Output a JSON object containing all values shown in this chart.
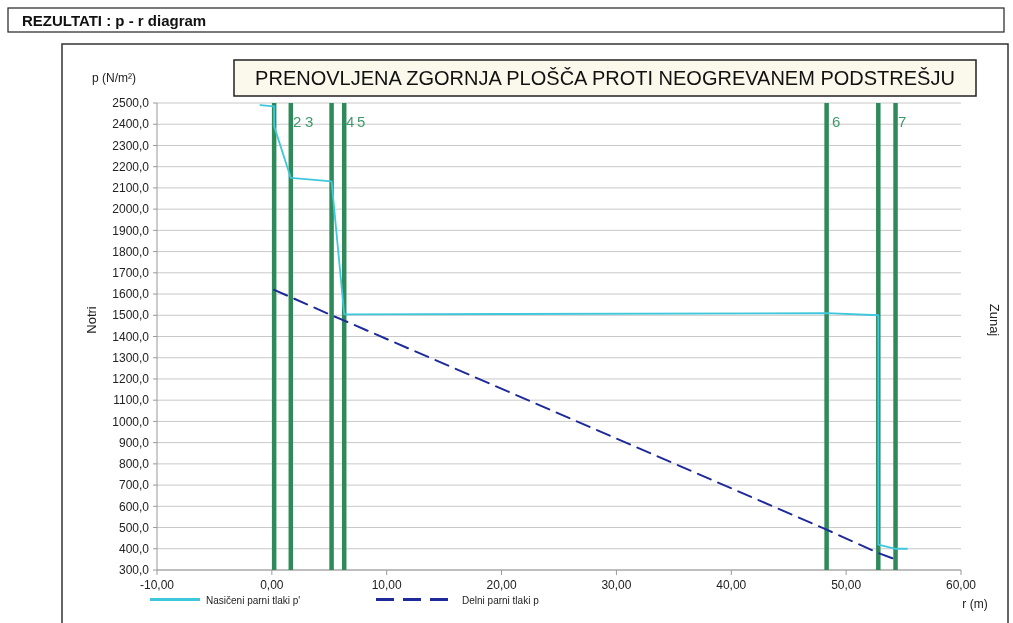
{
  "chart_data": {
    "type": "line",
    "title": "REZULTATI  :  p - r diagram",
    "subtitle": "PRENOVLJENA ZGORNJA PLOŠČA PROTI NEOGREVANEM PODSTREŠJU",
    "xlabel": "r (m)",
    "ylabel": "p (N/m²)",
    "xlim": [
      -10,
      60
    ],
    "xticks": [
      {
        "value": -10,
        "label": "-10,00"
      },
      {
        "value": 0,
        "label": "0,00"
      },
      {
        "value": 10,
        "label": "10,00"
      },
      {
        "value": 20,
        "label": "20,00"
      },
      {
        "value": 30,
        "label": "30,00"
      },
      {
        "value": 40,
        "label": "40,00"
      },
      {
        "value": 50,
        "label": "50,00"
      },
      {
        "value": 60,
        "label": "60,00"
      }
    ],
    "ylim": [
      300,
      2500
    ],
    "yticks": [
      {
        "value": 300,
        "label": "300,0"
      },
      {
        "value": 400,
        "label": "400,0"
      },
      {
        "value": 500,
        "label": "500,0"
      },
      {
        "value": 600,
        "label": "600,0"
      },
      {
        "value": 700,
        "label": "700,0"
      },
      {
        "value": 800,
        "label": "800,0"
      },
      {
        "value": 900,
        "label": "900,0"
      },
      {
        "value": 1000,
        "label": "1000,0"
      },
      {
        "value": 1100,
        "label": "1100,0"
      },
      {
        "value": 1200,
        "label": "1200,0"
      },
      {
        "value": 1300,
        "label": "1300,0"
      },
      {
        "value": 1400,
        "label": "1400,0"
      },
      {
        "value": 1500,
        "label": "1500,0"
      },
      {
        "value": 1600,
        "label": "1600,0"
      },
      {
        "value": 1700,
        "label": "1700,0"
      },
      {
        "value": 1800,
        "label": "1800,0"
      },
      {
        "value": 1900,
        "label": "1900,0"
      },
      {
        "value": 2000,
        "label": "2000,0"
      },
      {
        "value": 2100,
        "label": "2100,0"
      },
      {
        "value": 2200,
        "label": "2200,0"
      },
      {
        "value": 2300,
        "label": "2300,0"
      },
      {
        "value": 2400,
        "label": "2400,0"
      },
      {
        "value": 2500,
        "label": "2500,0"
      }
    ],
    "grid": "y",
    "legend": "bottom",
    "marker": "none",
    "series": [
      {
        "name": "Nasičeni parni tlaki p'",
        "color": "#3fc7dc",
        "line_style": "solid",
        "x": [
          -1.0,
          0.2,
          0.2,
          1.65,
          5.2,
          6.3,
          48.3,
          52.8,
          52.8,
          54.3,
          55.3
        ],
        "values": [
          2490,
          2484,
          2390,
          2147,
          2131,
          1504,
          1510,
          1500,
          420,
          400,
          400
        ]
      },
      {
        "name": "Delni parni tlaki p",
        "color": "#1f2a9a",
        "line_style": "dashed",
        "x": [
          0.2,
          5.2,
          6.3,
          48.3,
          52.8,
          54.3
        ],
        "values": [
          1620,
          1500,
          1475,
          490,
          380,
          350
        ]
      }
    ],
    "ref_lines": [
      {
        "axis": "x",
        "value": 0.2,
        "color": "#2f8a5a"
      },
      {
        "axis": "x",
        "value": 1.65,
        "color": "#2f8a5a"
      },
      {
        "axis": "x",
        "value": 5.2,
        "color": "#2f8a5a"
      },
      {
        "axis": "x",
        "value": 6.3,
        "color": "#2f8a5a"
      },
      {
        "axis": "x",
        "value": 48.3,
        "color": "#2f8a5a"
      },
      {
        "axis": "x",
        "value": 52.8,
        "color": "#2f8a5a"
      },
      {
        "axis": "x",
        "value": 54.3,
        "color": "#2f8a5a"
      }
    ],
    "annotations": [
      "Notri",
      "Zunaj",
      "2",
      "3",
      "4",
      "5",
      "6",
      "7"
    ]
  }
}
